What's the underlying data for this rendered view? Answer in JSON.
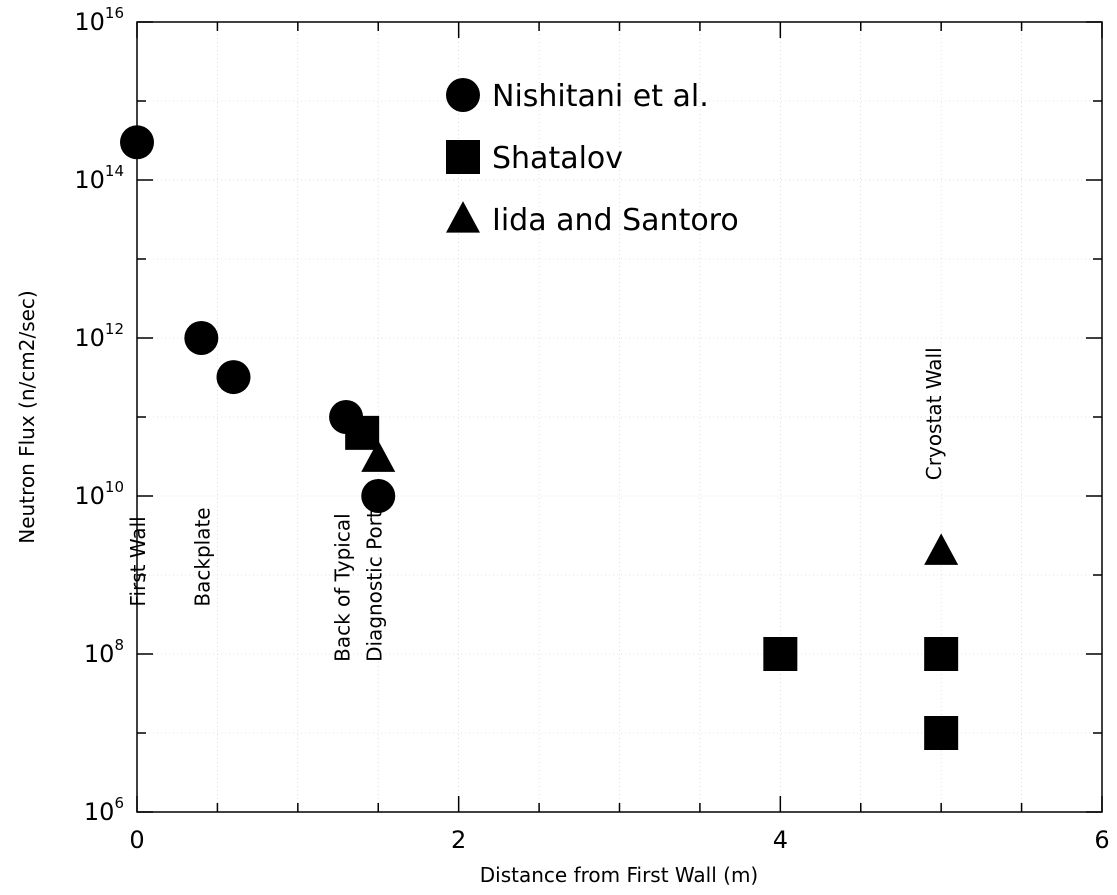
{
  "chart_data": {
    "type": "scatter",
    "xlabel": "Distance from First Wall (m)",
    "ylabel": "Neutron Flux (n/cm2/sec)",
    "xlim": [
      0,
      6
    ],
    "ylim_log10": [
      6,
      16
    ],
    "y_scale": "log",
    "x_ticks": [
      {
        "value": 0,
        "label": "0"
      },
      {
        "value": 2,
        "label": "2"
      },
      {
        "value": 4,
        "label": "4"
      },
      {
        "value": 6,
        "label": "6"
      }
    ],
    "y_ticks": [
      {
        "exp": 6,
        "base": "10",
        "sup": "6"
      },
      {
        "exp": 8,
        "base": "10",
        "sup": "8"
      },
      {
        "exp": 10,
        "base": "10",
        "sup": "10"
      },
      {
        "exp": 12,
        "base": "10",
        "sup": "12"
      },
      {
        "exp": 14,
        "base": "10",
        "sup": "14"
      },
      {
        "exp": 16,
        "base": "10",
        "sup": "16"
      }
    ],
    "grid": true,
    "legend_position": "top-center",
    "series": [
      {
        "name": "Nishitani et al.",
        "marker": "circle",
        "color": "#000000",
        "points": [
          {
            "x": 0.0,
            "y": 300000000000000.0
          },
          {
            "x": 0.4,
            "y": 1000000000000.0
          },
          {
            "x": 0.6,
            "y": 320000000000.0
          },
          {
            "x": 1.3,
            "y": 100000000000.0
          },
          {
            "x": 1.5,
            "y": 10000000000.0
          }
        ]
      },
      {
        "name": "Shatalov",
        "marker": "square",
        "color": "#000000",
        "points": [
          {
            "x": 1.4,
            "y": 63000000000.0
          },
          {
            "x": 4.0,
            "y": 100000000.0
          },
          {
            "x": 5.0,
            "y": 100000000.0
          },
          {
            "x": 5.0,
            "y": 10000000.0
          }
        ]
      },
      {
        "name": "Iida and Santoro",
        "marker": "triangle",
        "color": "#000000",
        "points": [
          {
            "x": 1.5,
            "y": 30000000000.0
          },
          {
            "x": 5.0,
            "y": 2000000000.0
          }
        ]
      }
    ],
    "annotations": [
      {
        "text": "First Wall",
        "x": 0.05,
        "y_exp": 8.6
      },
      {
        "text": "Backplate",
        "x": 0.45,
        "y_exp": 8.6
      },
      {
        "text": "Back of Typical",
        "x": 1.32,
        "y_exp": 7.9
      },
      {
        "text": "Diagnostic Port",
        "x": 1.52,
        "y_exp": 7.9
      },
      {
        "text": "Cryostat Wall",
        "x": 5.0,
        "y_exp": 10.2
      }
    ]
  }
}
